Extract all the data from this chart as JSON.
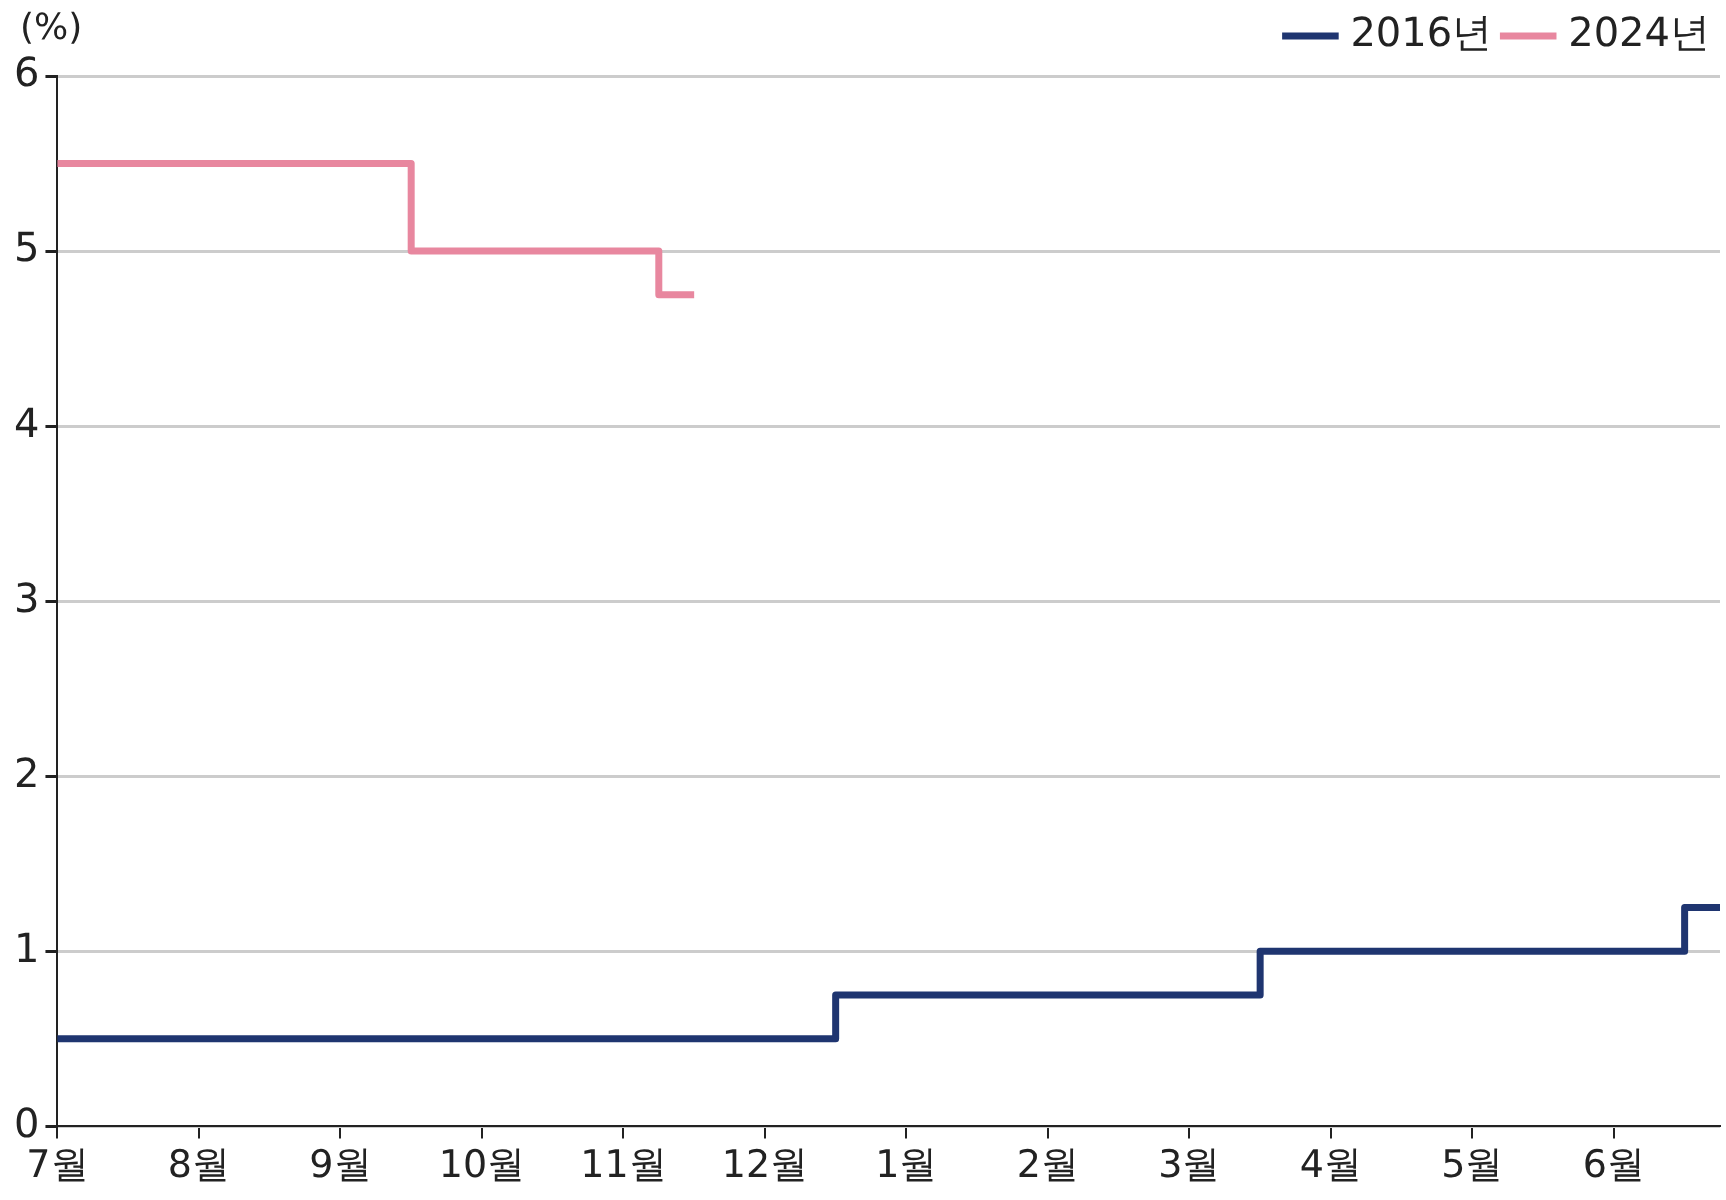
{
  "chart_data": {
    "type": "step",
    "ylabel": "(%)",
    "categories": [
      "7월",
      null,
      null,
      null,
      "8월",
      null,
      null,
      null,
      "9월",
      null,
      null,
      null,
      "10월",
      null,
      null,
      null,
      "11월",
      null,
      null,
      null,
      "12월",
      null,
      null,
      null,
      "1월",
      null,
      null,
      null,
      "2월",
      null,
      null,
      null,
      "3월",
      null,
      null,
      null,
      "4월",
      null,
      null,
      null,
      "5월",
      null,
      null,
      null,
      "6월",
      null,
      null,
      null
    ],
    "ylim": [
      0,
      6
    ],
    "yticks": [
      0,
      1,
      2,
      3,
      4,
      5,
      6
    ],
    "grid": "y",
    "legend": "top right",
    "marker": "none",
    "series": [
      {
        "name": "2016년",
        "color": "#1f3570",
        "values": [
          0.5,
          0.5,
          0.5,
          0.5,
          0.5,
          0.5,
          0.5,
          0.5,
          0.5,
          0.5,
          0.5,
          0.5,
          0.5,
          0.5,
          0.5,
          0.5,
          0.5,
          0.5,
          0.5,
          0.5,
          0.5,
          0.5,
          0.75,
          0.75,
          0.75,
          0.75,
          0.75,
          0.75,
          0.75,
          0.75,
          0.75,
          0.75,
          0.75,
          0.75,
          1,
          1,
          1,
          1,
          1,
          1,
          1,
          1,
          1,
          1,
          1,
          1,
          1.25,
          1.25
        ]
      },
      {
        "name": "2024년",
        "color": "#e8879f",
        "values": [
          5.5,
          5.5,
          5.5,
          5.5,
          5.5,
          5.5,
          5.5,
          5.5,
          5.5,
          5.5,
          5,
          5,
          5,
          5,
          5,
          5,
          5,
          4.75,
          4.75,
          null,
          null,
          null,
          null,
          null,
          null,
          null,
          null,
          null,
          null,
          null,
          null,
          null,
          null,
          null,
          null,
          null,
          null,
          null,
          null,
          null,
          null,
          null,
          null,
          null,
          null,
          null,
          null,
          null
        ]
      }
    ]
  }
}
